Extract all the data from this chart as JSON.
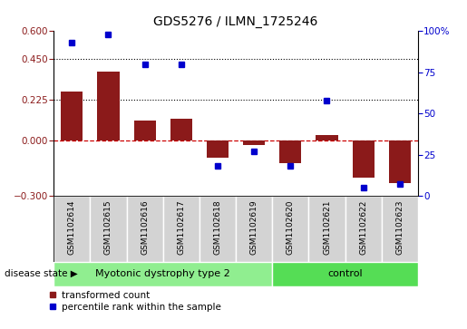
{
  "title": "GDS5276 / ILMN_1725246",
  "samples": [
    "GSM1102614",
    "GSM1102615",
    "GSM1102616",
    "GSM1102617",
    "GSM1102618",
    "GSM1102619",
    "GSM1102620",
    "GSM1102621",
    "GSM1102622",
    "GSM1102623"
  ],
  "red_values": [
    0.27,
    0.38,
    0.11,
    0.12,
    -0.09,
    -0.02,
    -0.12,
    0.03,
    -0.2,
    -0.23
  ],
  "blue_values": [
    93,
    98,
    80,
    80,
    18,
    27,
    18,
    58,
    5,
    7
  ],
  "ylim_left": [
    -0.3,
    0.6
  ],
  "ylim_right": [
    0,
    100
  ],
  "yticks_left": [
    -0.3,
    0.0,
    0.225,
    0.45,
    0.6
  ],
  "yticks_right": [
    0,
    25,
    50,
    75,
    100
  ],
  "hlines": [
    0.225,
    0.45
  ],
  "disease_groups": [
    {
      "label": "Myotonic dystrophy type 2",
      "start": 0,
      "end": 6,
      "color": "#90ee90"
    },
    {
      "label": "control",
      "start": 6,
      "end": 10,
      "color": "#55dd55"
    }
  ],
  "red_color": "#8B1A1A",
  "blue_color": "#0000CD",
  "zero_line_color": "#CC0000",
  "bar_bg_color": "#d3d3d3",
  "legend_red": "transformed count",
  "legend_blue": "percentile rank within the sample",
  "disease_state_label": "disease state"
}
